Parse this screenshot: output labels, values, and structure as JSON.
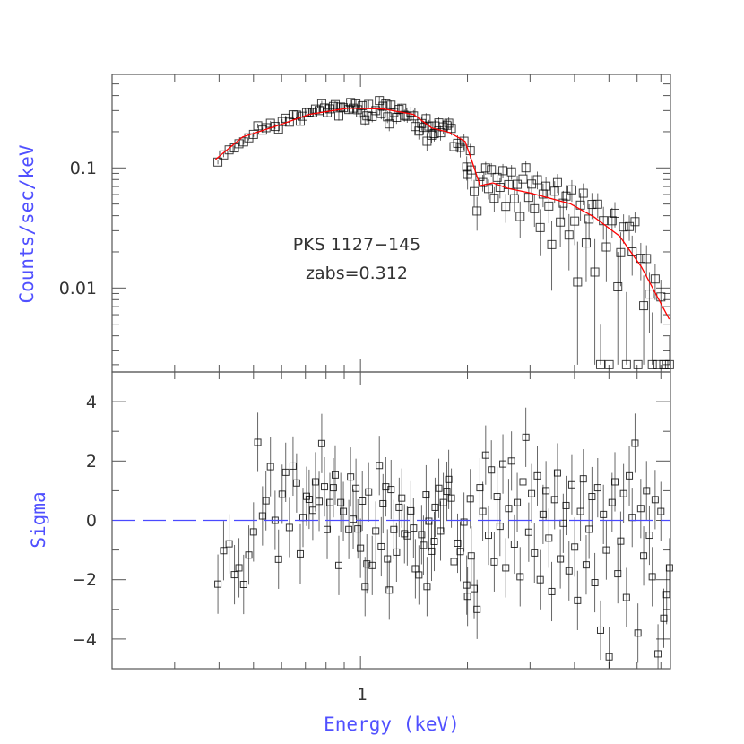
{
  "chart_data": [
    {
      "type": "scatter",
      "panel": "top",
      "ylabel": "Counts/sec/keV",
      "xscale": "log",
      "yscale": "log",
      "xlim": [
        0.2,
        7.45
      ],
      "ylim": [
        0.002,
        0.6
      ],
      "ytick_labels": [
        {
          "value": 0.1,
          "label": "0.1"
        },
        {
          "value": 0.01,
          "label": "0.01"
        }
      ],
      "annotations": [
        "PKS 1127−145",
        "zabs=0.312"
      ],
      "grid": false,
      "data_color": "#000000",
      "model_color": "#ff0000",
      "model": {
        "energy": [
          0.391,
          0.466,
          0.588,
          0.717,
          0.922,
          1.164,
          1.41,
          1.585,
          1.78,
          1.97,
          2.06,
          2.17,
          2.36,
          2.6,
          2.99,
          3.89,
          4.55,
          5.36,
          6.17,
          7.39
        ],
        "rate": [
          0.1175,
          0.181,
          0.226,
          0.279,
          0.314,
          0.309,
          0.279,
          0.215,
          0.197,
          0.166,
          0.1135,
          0.0712,
          0.075,
          0.0676,
          0.062,
          0.0504,
          0.0389,
          0.027,
          0.015,
          0.0055
        ]
      }
    },
    {
      "type": "scatter",
      "panel": "bottom",
      "xlabel": "Energy (keV)",
      "ylabel": "Sigma",
      "xscale": "log",
      "xlim": [
        0.2,
        7.45
      ],
      "ylim": [
        -5,
        5
      ],
      "xtick_labels": [
        {
          "value": 1,
          "label": "1"
        }
      ],
      "ytick_labels": [
        {
          "value": 4,
          "label": "4"
        },
        {
          "value": 2,
          "label": "2"
        },
        {
          "value": 0,
          "label": "0"
        },
        {
          "value": -2,
          "label": "−2"
        },
        {
          "value": -4,
          "label": "−4"
        }
      ],
      "reference_line": {
        "y": 0,
        "style": "dashed",
        "color": "#4a4aff"
      },
      "energy": [
        0.397,
        0.412,
        0.427,
        0.442,
        0.455,
        0.469,
        0.485,
        0.5,
        0.514,
        0.53,
        0.542,
        0.558,
        0.575,
        0.588,
        0.602,
        0.616,
        0.631,
        0.646,
        0.661,
        0.677,
        0.689,
        0.705,
        0.717,
        0.734,
        0.747,
        0.765,
        0.778,
        0.792,
        0.806,
        0.82,
        0.839,
        0.849,
        0.869,
        0.88,
        0.895,
        0.927,
        0.938,
        0.954,
        0.971,
        0.983,
        1.0,
        1.012,
        1.03,
        1.042,
        1.054,
        1.079,
        1.104,
        1.13,
        1.144,
        1.157,
        1.178,
        1.191,
        1.205,
        1.219,
        1.241,
        1.263,
        1.285,
        1.307,
        1.33,
        1.354,
        1.386,
        1.41,
        1.427,
        1.46,
        1.486,
        1.504,
        1.53,
        1.539,
        1.557,
        1.585,
        1.613,
        1.622,
        1.661,
        1.68,
        1.71,
        1.75,
        1.771,
        1.802,
        1.833,
        1.876,
        1.909,
        1.955,
        1.99,
        2.001,
        2.037,
        2.05,
        2.089,
        2.128,
        2.168,
        2.208,
        2.25,
        2.292,
        2.335,
        2.379,
        2.424,
        2.469,
        2.516,
        2.563,
        2.611,
        2.66,
        2.71,
        2.761,
        2.813,
        2.866,
        2.919,
        2.974,
        3.03,
        3.087,
        3.145,
        3.204,
        3.264,
        3.326,
        3.388,
        3.452,
        3.517,
        3.583,
        3.65,
        3.719,
        3.788,
        3.86,
        3.932,
        4.006,
        4.081,
        4.158,
        4.236,
        4.315,
        4.396,
        4.479,
        4.563,
        4.649,
        4.736,
        4.825,
        4.916,
        5.008,
        5.102,
        5.198,
        5.296,
        5.395,
        5.496,
        5.6,
        5.705,
        5.812,
        5.921,
        6.032,
        6.145,
        6.261,
        6.378,
        6.498,
        6.62,
        6.745,
        6.871,
        7.0,
        7.132,
        7.266,
        7.402
      ],
      "sigma": [
        -2.15,
        -1.02,
        -0.79,
        -1.83,
        -1.6,
        -2.16,
        -1.17,
        -0.39,
        2.63,
        0.15,
        0.66,
        1.81,
        0,
        -1.31,
        0.88,
        1.62,
        -0.24,
        1.83,
        1.26,
        -1.13,
        0.1,
        0.81,
        0.71,
        0.34,
        1.3,
        0.64,
        2.59,
        1.13,
        -0.31,
        0.6,
        1.1,
        1.53,
        -1.52,
        0.6,
        0.3,
        -0.31,
        1.46,
        0.04,
        1.08,
        -0.29,
        -0.94,
        0.65,
        -2.23,
        -1.47,
        0.96,
        -1.52,
        -0.36,
        1.85,
        -0.89,
        0.56,
        1.13,
        -1.3,
        -2.35,
        1.04,
        -0.31,
        -1.07,
        0.44,
        0.75,
        -0.45,
        -0.52,
        0.32,
        -0.26,
        -1.63,
        -1.84,
        -0.48,
        -0.84,
        0.86,
        -2.23,
        -0.03,
        -1.04,
        -0.71,
        0.44,
        1.08,
        -0.36,
        0.6,
        0.98,
        1.38,
        0.75,
        -1.39,
        -0.77,
        -1.05,
        -0.06,
        -2.18,
        -2.56,
        0.73,
        -1.2,
        -2.3,
        -3.0,
        1.1,
        0.3,
        2.2,
        -0.5,
        1.7,
        -1.4,
        0.8,
        -0.2,
        1.9,
        -1.6,
        0.4,
        2.0,
        -0.8,
        0.6,
        -1.9,
        1.3,
        2.8,
        -0.4,
        0.9,
        -1.1,
        1.5,
        -2.0,
        0.2,
        1.0,
        -0.6,
        -2.4,
        0.7,
        1.6,
        -1.3,
        -0.1,
        0.5,
        -1.7,
        1.2,
        -0.9,
        -2.7,
        0.3,
        1.4,
        -1.5,
        -0.3,
        0.8,
        -2.1,
        1.1,
        -3.7,
        0.2,
        -1.0,
        -4.6,
        0.6,
        1.3,
        -1.8,
        -0.7,
        0.9,
        -2.6,
        1.5,
        0.1,
        2.6,
        -3.8,
        0.4,
        -1.2,
        1.0,
        -0.5,
        -1.9,
        0.7,
        -4.5,
        0.3,
        -3.3,
        -2.5,
        -1.6
      ]
    }
  ]
}
